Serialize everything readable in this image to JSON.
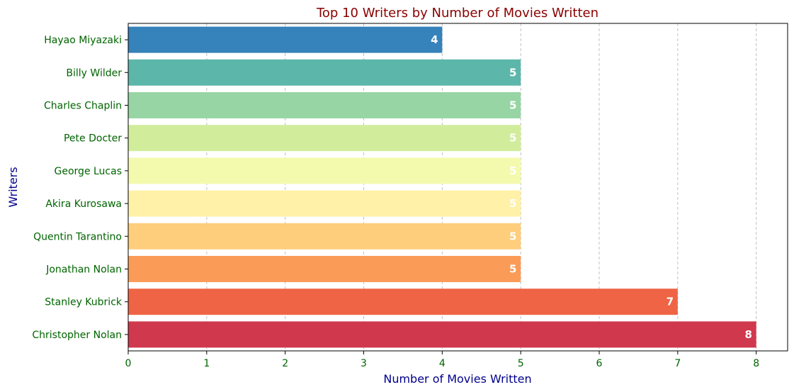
{
  "chart_data": {
    "type": "bar",
    "orientation": "horizontal",
    "title": "Top 10 Writers by Number of Movies Written",
    "xlabel": "Number of Movies Written",
    "ylabel": "Writers",
    "xlim": [
      0,
      8.4
    ],
    "xticks": [
      0,
      1,
      2,
      3,
      4,
      5,
      6,
      7,
      8
    ],
    "grid": "x-dashed",
    "categories": [
      "Christopher Nolan",
      "Stanley Kubrick",
      "Jonathan Nolan",
      "Quentin Tarantino",
      "Akira Kurosawa",
      "George Lucas",
      "Pete Docter",
      "Charles Chaplin",
      "Billy Wilder",
      "Hayao Miyazaki"
    ],
    "values": [
      8,
      7,
      5,
      5,
      5,
      5,
      5,
      5,
      5,
      4
    ],
    "bar_colors": [
      "#d0384d",
      "#ee6445",
      "#fa9b58",
      "#fece7c",
      "#fff1a8",
      "#f4faad",
      "#d1ed9c",
      "#97d5a4",
      "#5cb7aa",
      "#3682ba"
    ],
    "colors": {
      "title": "#8b0000",
      "axis_label": "#00008b",
      "tick_label": "#006400",
      "value_label": "#ffffff",
      "grid": "#c0c0c0"
    }
  }
}
